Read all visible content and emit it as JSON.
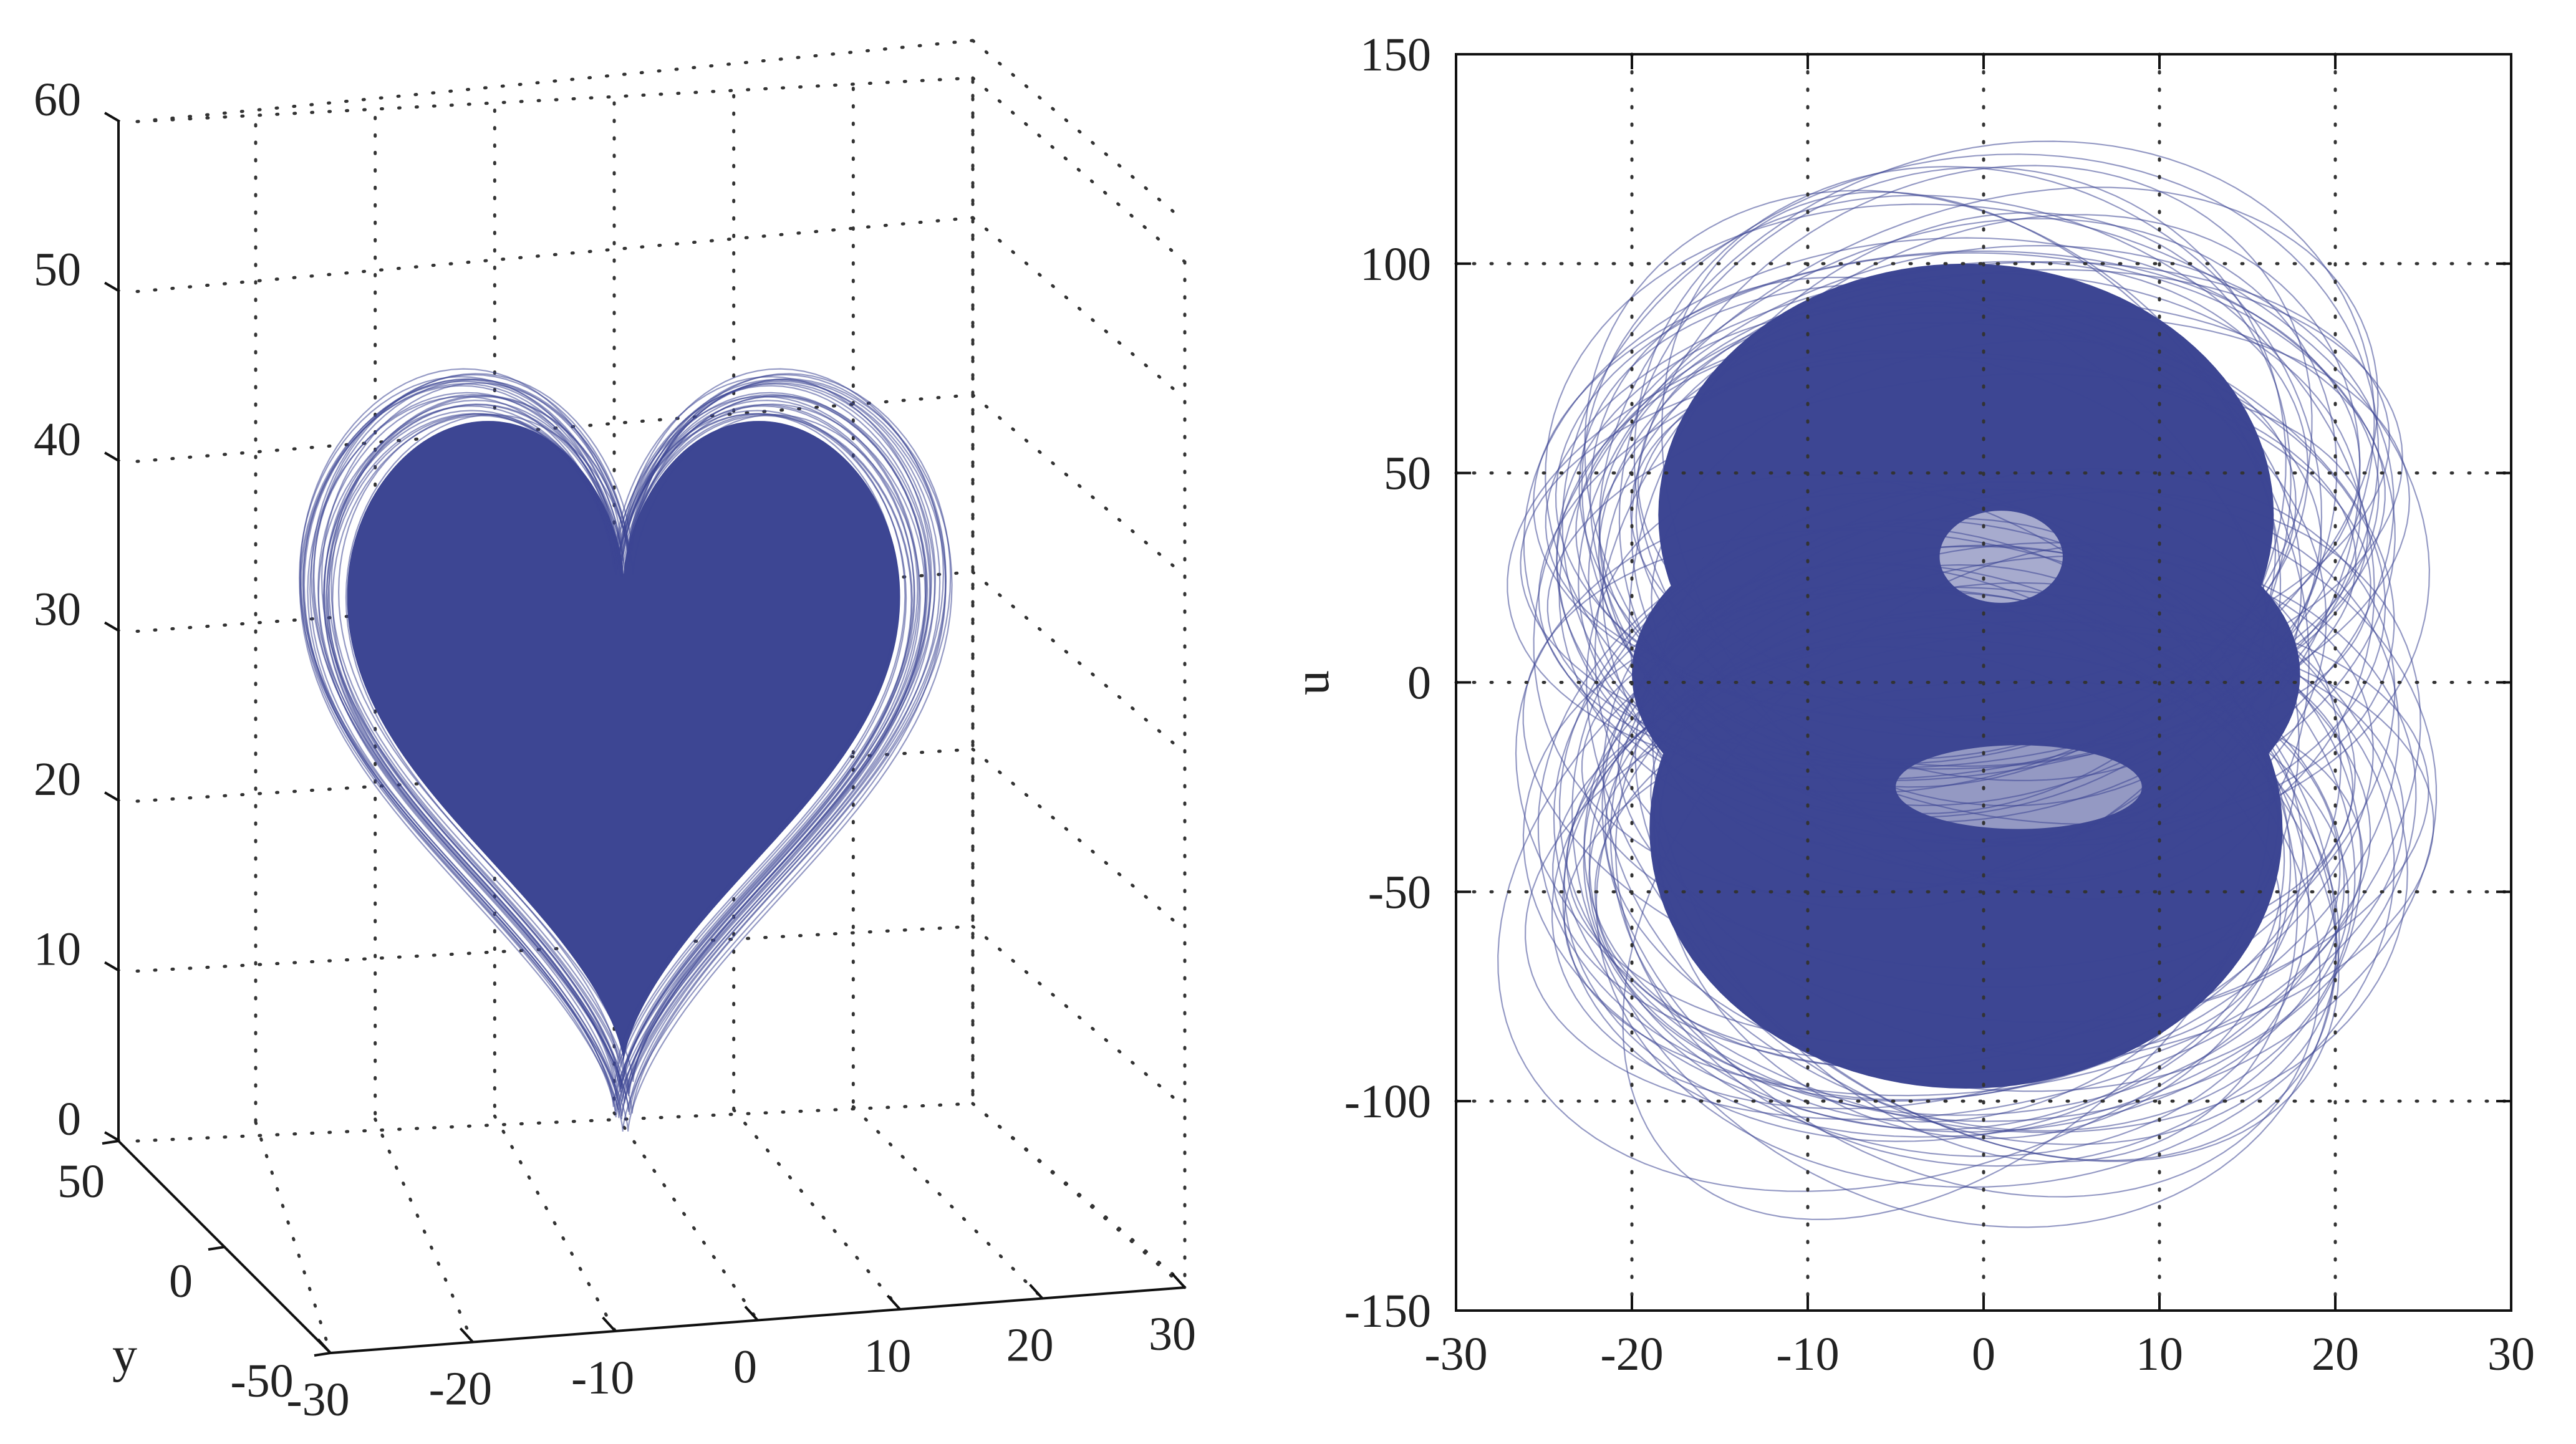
{
  "chart_data": [
    {
      "type": "line",
      "subtype": "3d-phase-portrait",
      "title": "",
      "series_color": "#3d4693",
      "axes": {
        "x": {
          "label": "",
          "range": [
            -30,
            30
          ],
          "ticks": [
            "-30",
            "-20",
            "-10",
            "0",
            "10",
            "20",
            "30"
          ]
        },
        "y": {
          "label": "y",
          "range": [
            -50,
            50
          ],
          "ticks": [
            "-50",
            "0",
            "50"
          ]
        },
        "z": {
          "label": "",
          "range": [
            0,
            60
          ],
          "ticks": [
            "0",
            "10",
            "20",
            "30",
            "40",
            "50",
            "60"
          ]
        }
      },
      "grid": true,
      "approx_extent": {
        "x": [
          -20,
          20
        ],
        "z": [
          3,
          50
        ]
      }
    },
    {
      "type": "line",
      "subtype": "2d-phase-portrait",
      "title": "",
      "series_color": "#3d4693",
      "xlabel": "",
      "ylabel": "u",
      "xlim": [
        -30,
        30
      ],
      "ylim": [
        -150,
        150
      ],
      "xticks": [
        "-30",
        "-20",
        "-10",
        "0",
        "10",
        "20",
        "30"
      ],
      "yticks": [
        "-150",
        "-100",
        "-50",
        "0",
        "50",
        "100",
        "150"
      ],
      "grid": true,
      "approx_extent": {
        "x": [
          -24,
          25
        ],
        "u": [
          -115,
          120
        ]
      }
    }
  ]
}
